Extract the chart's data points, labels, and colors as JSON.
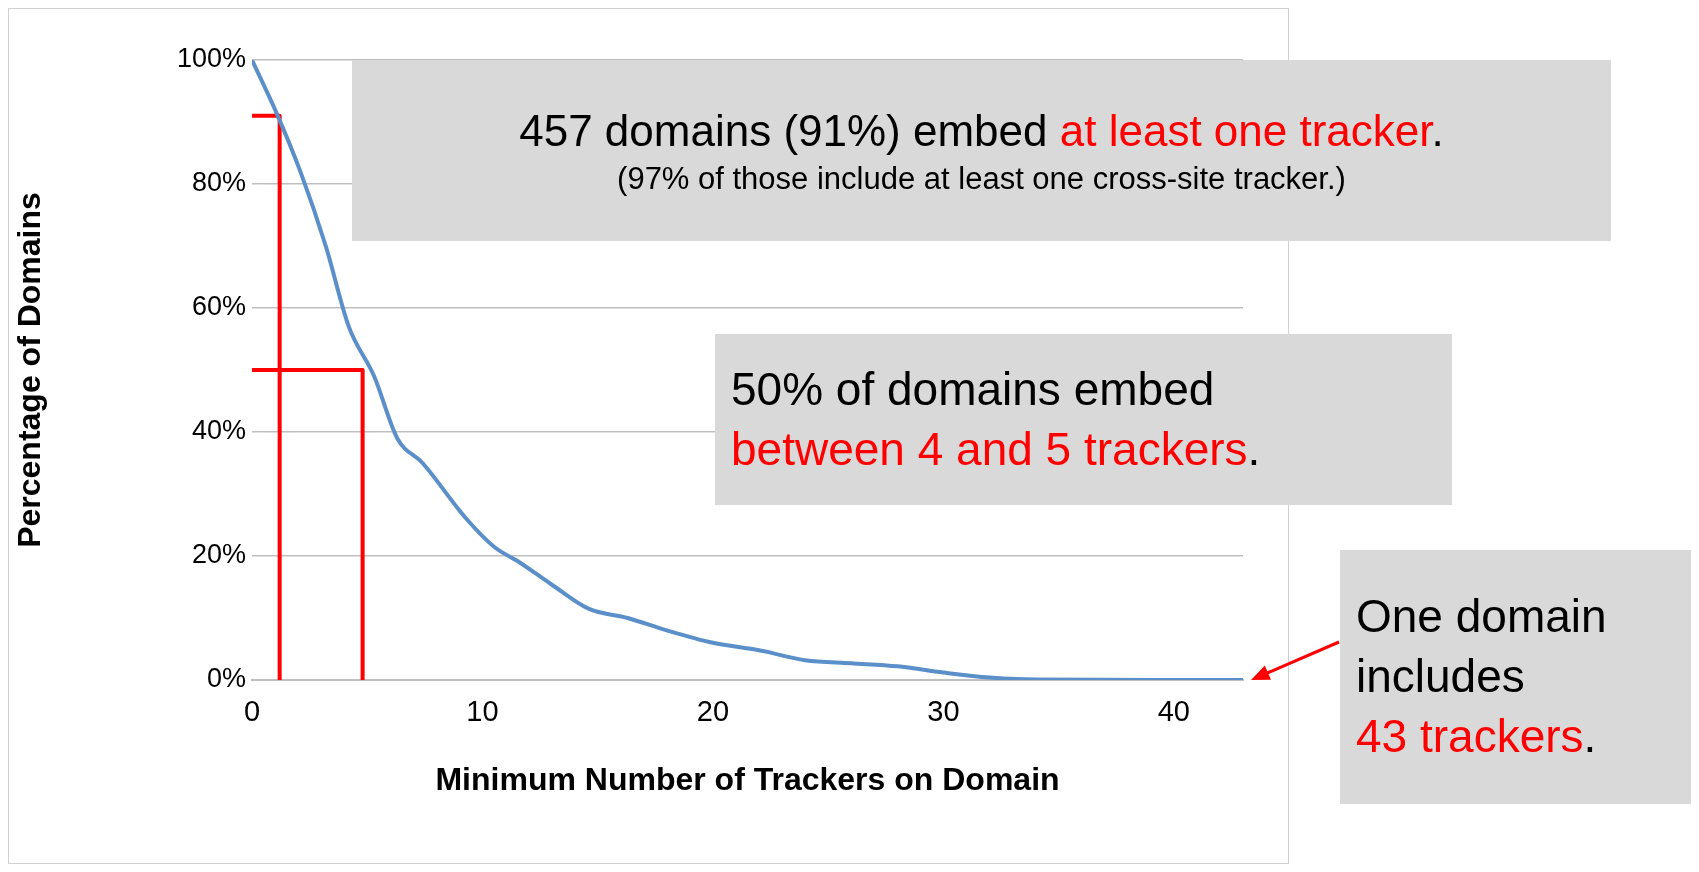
{
  "chart_data": {
    "type": "line",
    "xlabel": "Minimum Number of Trackers on Domain",
    "ylabel": "Percentage of Domains",
    "xlim": [
      0,
      43
    ],
    "xticks": [
      0,
      10,
      20,
      30,
      40
    ],
    "ylim": [
      0,
      100
    ],
    "yticks": [
      {
        "value": 0,
        "label": "0%"
      },
      {
        "value": 20,
        "label": "20%"
      },
      {
        "value": 40,
        "label": "40%"
      },
      {
        "value": 60,
        "label": "60%"
      },
      {
        "value": 80,
        "label": "80%"
      },
      {
        "value": 100,
        "label": "100%"
      }
    ],
    "grid": "y",
    "legend": false,
    "marker": "none",
    "line_style": "solid",
    "series": [
      {
        "color": "#5b8fc9",
        "x": [
          0,
          1,
          2.1,
          3.2,
          4.2,
          5.3,
          6.3,
          7.4,
          9.3,
          10.5,
          11.6,
          13,
          14.6,
          16.3,
          18,
          20,
          22,
          24,
          26,
          28,
          30,
          32,
          34,
          43
        ],
        "values": [
          100,
          92,
          82,
          70,
          57,
          49,
          39,
          35,
          26,
          21.5,
          19,
          15.4,
          11.5,
          10,
          8,
          6,
          4.8,
          3.2,
          2.7,
          2.2,
          1.2,
          0.4,
          0.1,
          0
        ]
      },
      {
        "color": "#ff0000",
        "x": [
          0,
          1.2,
          1.2
        ],
        "values": [
          91,
          91,
          0
        ]
      },
      {
        "color": "#ff0000",
        "x": [
          0,
          4.8,
          4.8
        ],
        "values": [
          50,
          50,
          0
        ]
      }
    ],
    "annotations": [
      "457 domains (91%) embed ",
      "at least one tracker",
      ".",
      "(97% of those include at least one cross-site tracker.)",
      "50% of domains embed",
      "between 4 and 5 trackers",
      ".",
      "One domain",
      "includes",
      "43 trackers",
      "."
    ]
  }
}
